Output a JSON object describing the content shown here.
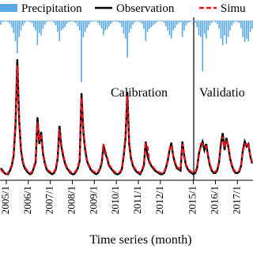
{
  "chart_data": {
    "type": "line",
    "x_label": "Time series (month)",
    "annotations": [
      "Calibration",
      "Validatio"
    ],
    "categories": [
      null,
      null,
      null,
      "2005/1",
      null,
      null,
      null,
      null,
      null,
      null,
      null,
      null,
      null,
      null,
      null,
      "2006/1",
      null,
      null,
      null,
      null,
      null,
      null,
      null,
      null,
      null,
      null,
      null,
      "2007/1",
      null,
      null,
      null,
      null,
      null,
      null,
      null,
      null,
      null,
      null,
      null,
      "2008/1",
      null,
      null,
      null,
      null,
      null,
      null,
      null,
      null,
      null,
      null,
      null,
      "2009/1",
      null,
      null,
      null,
      null,
      null,
      null,
      null,
      null,
      null,
      null,
      null,
      "2010/1",
      null,
      null,
      null,
      null,
      null,
      null,
      null,
      null,
      null,
      null,
      null,
      "2011/1",
      null,
      null,
      null,
      null,
      null,
      null,
      null,
      null,
      null,
      null,
      null,
      "2012/1",
      null,
      null,
      null,
      null,
      null,
      null,
      null,
      null,
      null,
      null,
      null,
      null,
      null,
      null,
      null,
      null,
      null,
      "2015/1",
      null,
      null,
      null,
      null,
      null,
      null,
      null,
      null,
      null,
      null,
      null,
      "2016/1",
      null,
      null,
      null,
      null,
      null,
      null,
      null,
      null,
      null,
      null,
      null,
      "2017/1",
      null,
      null,
      null,
      null,
      null,
      null,
      null,
      null
    ],
    "series": [
      {
        "name": "Precipitation",
        "type": "bar",
        "color": "#5aa9e6",
        "values": [
          5,
          2,
          1,
          1,
          2,
          4,
          8,
          15,
          25,
          40,
          20,
          12,
          6,
          3,
          1,
          1,
          2,
          3,
          8,
          12,
          30,
          15,
          18,
          10,
          5,
          2,
          1,
          1,
          1,
          3,
          6,
          14,
          25,
          12,
          10,
          8,
          4,
          2,
          1,
          1,
          2,
          3,
          7,
          12,
          75,
          20,
          14,
          9,
          5,
          2,
          1,
          1,
          1,
          3,
          6,
          10,
          18,
          12,
          10,
          7,
          4,
          2,
          1,
          1,
          2,
          3,
          8,
          16,
          22,
          45,
          15,
          10,
          5,
          2,
          1,
          1,
          2,
          4,
          10,
          25,
          14,
          10,
          8,
          6,
          4,
          2,
          1,
          1,
          1,
          3,
          7,
          12,
          18,
          22,
          12,
          9,
          5,
          3,
          2,
          20,
          12,
          6,
          3,
          2,
          1,
          1,
          3,
          8,
          18,
          20,
          62,
          16,
          22,
          12,
          6,
          3,
          1,
          2,
          4,
          10,
          22,
          30,
          18,
          28,
          20,
          12,
          6,
          3,
          1,
          2,
          3,
          9,
          20,
          26,
          22,
          25,
          14,
          10
        ]
      },
      {
        "name": "Observation",
        "type": "line",
        "color": "#000000",
        "dash": false,
        "values": [
          10,
          8,
          6,
          5,
          5,
          8,
          12,
          20,
          45,
          100,
          50,
          25,
          15,
          10,
          8,
          6,
          5,
          6,
          10,
          15,
          52,
          30,
          40,
          22,
          14,
          9,
          7,
          6,
          5,
          6,
          9,
          18,
          45,
          28,
          20,
          14,
          10,
          8,
          6,
          5,
          5,
          7,
          10,
          16,
          72,
          40,
          25,
          16,
          12,
          9,
          7,
          6,
          5,
          6,
          9,
          14,
          29,
          22,
          18,
          12,
          10,
          8,
          6,
          5,
          5,
          6,
          9,
          20,
          35,
          73,
          30,
          18,
          12,
          9,
          7,
          6,
          5,
          8,
          12,
          32,
          20,
          15,
          12,
          10,
          8,
          7,
          6,
          5,
          5,
          6,
          10,
          16,
          25,
          31,
          20,
          14,
          10,
          9,
          8,
          32,
          20,
          12,
          9,
          7,
          6,
          5,
          6,
          10,
          22,
          28,
          32,
          25,
          30,
          20,
          12,
          8,
          6,
          6,
          8,
          15,
          30,
          39,
          25,
          35,
          28,
          18,
          12,
          8,
          6,
          6,
          7,
          12,
          25,
          32,
          28,
          30,
          20,
          14
        ]
      },
      {
        "name": "Simu",
        "type": "line",
        "color": "#e8141b",
        "dash": true,
        "values": [
          9,
          7,
          6,
          5,
          6,
          9,
          13,
          22,
          48,
          95,
          52,
          27,
          16,
          11,
          9,
          7,
          6,
          7,
          11,
          17,
          48,
          33,
          38,
          24,
          15,
          10,
          8,
          7,
          6,
          7,
          10,
          19,
          42,
          30,
          22,
          15,
          11,
          9,
          7,
          6,
          6,
          8,
          11,
          18,
          68,
          42,
          27,
          17,
          13,
          10,
          8,
          7,
          6,
          7,
          10,
          15,
          30,
          24,
          19,
          13,
          11,
          9,
          7,
          6,
          6,
          7,
          10,
          22,
          37,
          70,
          32,
          19,
          13,
          10,
          8,
          7,
          6,
          9,
          13,
          30,
          28,
          16,
          13,
          11,
          9,
          8,
          7,
          6,
          6,
          7,
          11,
          17,
          26,
          29,
          21,
          15,
          11,
          10,
          9,
          30,
          21,
          13,
          10,
          8,
          7,
          6,
          7,
          11,
          20,
          30,
          30,
          27,
          28,
          21,
          13,
          9,
          7,
          7,
          9,
          16,
          28,
          36,
          27,
          33,
          29,
          19,
          13,
          9,
          7,
          7,
          8,
          13,
          24,
          30,
          29,
          31,
          21,
          15
        ]
      }
    ]
  }
}
